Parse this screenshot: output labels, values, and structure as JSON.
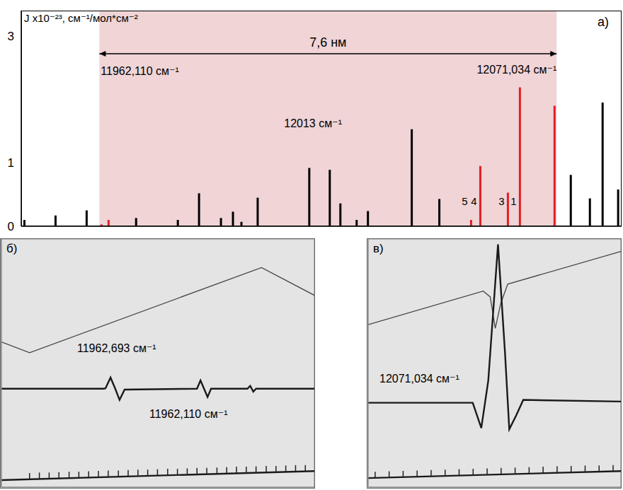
{
  "chart_data": [
    {
      "type": "stem",
      "panel": "a)",
      "y_label": "J x10⁻²³, см⁻¹/мол*см⁻²",
      "x": [
        11944.26,
        11951.67,
        11959.08,
        11962.6,
        11964.3,
        11970.86,
        11980.8,
        11985.85,
        11991.07,
        11993.93,
        11995.95,
        11999.82,
        12012.11,
        12016.99,
        12019.52,
        12023.39,
        12026.08,
        12036.52,
        12043.09,
        12049.82,
        12050.66,
        12052.85,
        12059.42,
        12062.28,
        12070.53,
        12074.4,
        12078.95,
        12081.98,
        12085.68
      ],
      "values": [
        0.1,
        0.17,
        0.25,
        0.03,
        0.1,
        0.13,
        0.1,
        0.52,
        0.13,
        0.23,
        0.07,
        0.45,
        0.92,
        0.89,
        0.36,
        0.1,
        0.24,
        1.53,
        0.43,
        0.01,
        0.1,
        0.95,
        0.53,
        2.19,
        1.9,
        0.81,
        0.44,
        1.95,
        0.58
      ],
      "colors": [
        "#000000",
        "#000000",
        "#000000",
        "#e31e24",
        "#e31e24",
        "#000000",
        "#000000",
        "#000000",
        "#000000",
        "#000000",
        "#000000",
        "#000000",
        "#000000",
        "#000000",
        "#000000",
        "#000000",
        "#000000",
        "#000000",
        "#000000",
        "#e31e24",
        "#e31e24",
        "#e31e24",
        "#e31e24",
        "#e31e24",
        "#e31e24",
        "#000000",
        "#000000",
        "#000000",
        "#000000"
      ],
      "line_labels": [
        null,
        null,
        null,
        null,
        null,
        null,
        null,
        null,
        null,
        null,
        null,
        null,
        null,
        null,
        null,
        null,
        null,
        null,
        null,
        null,
        "5",
        "4",
        "3",
        "1",
        null,
        null,
        null,
        null,
        null
      ],
      "xlim": [
        11943.5,
        12086.5
      ],
      "ylim": [
        0,
        3.4
      ],
      "yticks": [
        0,
        1,
        3
      ],
      "tick_labels": "y",
      "grid": false,
      "span": {
        "from": 11962.11,
        "to": 12071.034,
        "label": "7,6 нм",
        "from_label": "11962,110 см⁻¹",
        "to_label": "12071,034 см⁻¹",
        "color": "#f0d4d6"
      },
      "annotations": [
        {
          "text": "12013 см⁻¹",
          "x": 12013
        }
      ]
    },
    {
      "type": "oscilloscope",
      "panel": "б)",
      "xlim": [
        0,
        8
      ],
      "xticks": [
        0,
        1,
        2,
        3,
        4,
        5,
        6,
        7,
        8
      ],
      "ylim": [
        0,
        6
      ],
      "yticks": [
        0,
        1,
        2,
        3,
        4,
        5,
        6
      ],
      "grid": true,
      "tick_labels": false,
      "series": [
        {
          "type": "line",
          "line_style": "thin",
          "x": [
            0,
            0.72,
            6.65,
            8
          ],
          "values": [
            3.51,
            3.25,
            5.31,
            4.64
          ]
        },
        {
          "type": "line",
          "line_style": "thick",
          "x": [
            0,
            2.61,
            2.66,
            2.79,
            2.91,
            3.02,
            3.15,
            5.0,
            5.09,
            5.18,
            5.27,
            5.36,
            6.29,
            6.36,
            6.44,
            6.51,
            8
          ],
          "values": [
            2.38,
            2.38,
            2.39,
            2.65,
            2.38,
            2.11,
            2.36,
            2.38,
            2.58,
            2.38,
            2.18,
            2.38,
            2.38,
            2.45,
            2.31,
            2.38,
            2.38
          ]
        },
        {
          "type": "line",
          "line_style": "thick",
          "x": [
            0,
            8
          ],
          "values": [
            0.17,
            0.39
          ]
        },
        {
          "type": "scatter",
          "marker": "tick",
          "x": [
            0.72,
            0.97,
            1.22,
            1.47,
            1.73,
            1.98,
            2.23,
            2.48,
            2.73,
            2.99,
            3.24,
            3.49,
            3.74,
            3.99,
            4.25,
            4.5,
            4.75,
            5.0,
            5.25,
            5.51,
            5.76,
            6.01,
            6.26,
            6.51,
            6.77,
            7.02,
            7.27,
            7.52,
            7.77
          ],
          "values": [
            0.19,
            0.2,
            0.2,
            0.21,
            0.22,
            0.22,
            0.23,
            0.24,
            0.25,
            0.25,
            0.26,
            0.27,
            0.27,
            0.28,
            0.29,
            0.29,
            0.3,
            0.31,
            0.31,
            0.32,
            0.33,
            0.34,
            0.34,
            0.35,
            0.36,
            0.36,
            0.37,
            0.38,
            0.38
          ]
        }
      ],
      "annotations": [
        "11962,693 см⁻¹",
        "11962,110 см⁻¹"
      ]
    },
    {
      "type": "oscilloscope",
      "panel": "в)",
      "xlim": [
        0,
        6.5
      ],
      "xticks": [
        0,
        1,
        2,
        3,
        4,
        5,
        6
      ],
      "ylim": [
        0,
        6
      ],
      "yticks": [
        0,
        1,
        2,
        3,
        4,
        5,
        6
      ],
      "grid": true,
      "tick_labels": false,
      "series": [
        {
          "type": "line",
          "line_style": "thin",
          "x": [
            0,
            2.96,
            3.14,
            3.27,
            3.41,
            3.59,
            6.5
          ],
          "values": [
            3.93,
            4.74,
            4.6,
            3.84,
            4.44,
            4.91,
            5.7
          ]
        },
        {
          "type": "line",
          "line_style": "thick",
          "x": [
            0,
            2.69,
            2.91,
            3.09,
            3.34,
            3.52,
            3.63,
            3.81,
            3.99,
            6.5
          ],
          "values": [
            2.04,
            2.04,
            1.43,
            2.58,
            5.87,
            3.25,
            1.4,
            1.74,
            2.11,
            2.07
          ]
        },
        {
          "type": "line",
          "line_style": "thick",
          "x": [
            0,
            6.5
          ],
          "values": [
            0.22,
            0.39
          ]
        },
        {
          "type": "scatter",
          "marker": "tick",
          "x": [
            0.18,
            0.54,
            0.9,
            1.26,
            1.62,
            1.98,
            2.34,
            2.7,
            3.06,
            3.42,
            3.78,
            4.14,
            4.5,
            4.86,
            5.22,
            5.58,
            5.94,
            6.3
          ],
          "values": [
            0.22,
            0.23,
            0.24,
            0.25,
            0.26,
            0.27,
            0.28,
            0.29,
            0.3,
            0.31,
            0.32,
            0.33,
            0.34,
            0.35,
            0.36,
            0.37,
            0.37,
            0.38
          ]
        }
      ],
      "annotations": [
        "12071,034 см⁻¹"
      ]
    }
  ]
}
